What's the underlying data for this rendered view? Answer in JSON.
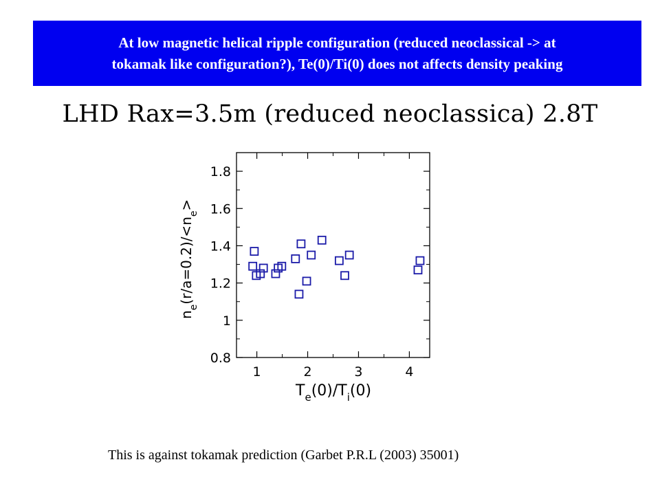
{
  "slide": {
    "banner_line1": "At low magnetic helical ripple configuration (reduced neoclassical -> at",
    "banner_line2": "tokamak like configuration?), Te(0)/Ti(0) does not affects density peaking",
    "subtitle": "LHD Rax=3.5m (reduced neoclassica) 2.8T",
    "footer": "This is against tokamak prediction (Garbet P.R.L (2003) 35001)",
    "colors": {
      "banner_bg": "#0000f0",
      "banner_text": "#ffffff",
      "marker": "#1a1aa8"
    }
  },
  "chart_data": {
    "type": "scatter",
    "xlabel": {
      "main": "T",
      "sub1": "e",
      "mid": "(0)/T",
      "sub2": "i",
      "end": "(0)"
    },
    "ylabel": {
      "main": "n",
      "sub1": "e",
      "mid": "(r/a=0.2)/<n",
      "sub2": "e",
      "end": ">"
    },
    "xlim": [
      0.6,
      4.4
    ],
    "ylim": [
      0.8,
      1.9
    ],
    "x_ticks": [
      "1",
      "2",
      "3",
      "4"
    ],
    "y_ticks": [
      "0.8",
      "1",
      "1.2",
      "1.4",
      "1.6",
      "1.8"
    ],
    "marker": "open-square",
    "grid": false,
    "points": [
      [
        0.92,
        1.29
      ],
      [
        0.95,
        1.37
      ],
      [
        0.99,
        1.24
      ],
      [
        1.07,
        1.25
      ],
      [
        1.13,
        1.28
      ],
      [
        1.37,
        1.25
      ],
      [
        1.42,
        1.28
      ],
      [
        1.49,
        1.29
      ],
      [
        1.76,
        1.33
      ],
      [
        1.83,
        1.14
      ],
      [
        1.87,
        1.41
      ],
      [
        1.98,
        1.21
      ],
      [
        2.07,
        1.35
      ],
      [
        2.28,
        1.43
      ],
      [
        2.62,
        1.32
      ],
      [
        2.73,
        1.24
      ],
      [
        2.82,
        1.35
      ],
      [
        4.17,
        1.27
      ],
      [
        4.21,
        1.32
      ]
    ]
  }
}
